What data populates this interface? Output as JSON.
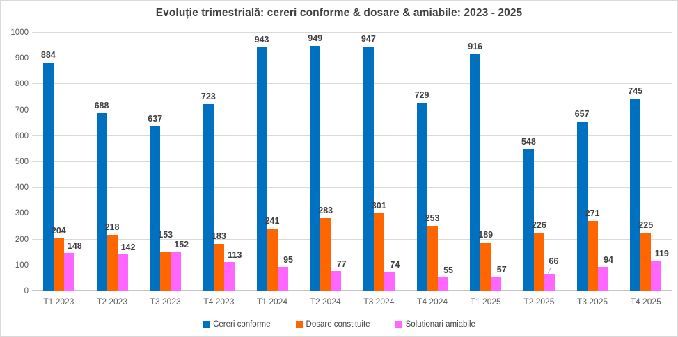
{
  "chart_data": {
    "type": "bar",
    "title": "Evoluție trimestrială: cereri conforme & dosare & amiabile: 2023 - 2025",
    "categories": [
      "T1 2023",
      "T2 2023",
      "T3 2023",
      "T4 2023",
      "T1 2024",
      "T2 2024",
      "T3 2024",
      "T4 2024",
      "T1 2025",
      "T2 2025",
      "T3 2025",
      "T4 2025"
    ],
    "series": [
      {
        "name": "Cereri conforme",
        "color": "#0070C0",
        "values": [
          884,
          688,
          637,
          723,
          943,
          949,
          947,
          729,
          916,
          548,
          657,
          745
        ]
      },
      {
        "name": "Dosare constituite",
        "color": "#FF6600",
        "values": [
          204,
          218,
          153,
          183,
          241,
          283,
          301,
          253,
          189,
          226,
          271,
          225
        ]
      },
      {
        "name": "Solutionari amiabile",
        "color": "#FF66FF",
        "values": [
          148,
          142,
          152,
          113,
          95,
          77,
          74,
          55,
          57,
          66,
          94,
          119
        ]
      }
    ],
    "xlabel": "",
    "ylabel": "",
    "ylim": [
      0,
      1000
    ],
    "yticks": [
      0,
      100,
      200,
      300,
      400,
      500,
      600,
      700,
      800,
      900,
      1000
    ],
    "grid": true,
    "legend_position": "bottom",
    "data_labels": true,
    "moved_labels": [
      {
        "category": "T3 2023",
        "series": "Dosare constituite",
        "leader": "vertical"
      },
      {
        "category": "T2 2025",
        "series": "Solutionari amiabile",
        "leader": "diagonal"
      }
    ]
  }
}
